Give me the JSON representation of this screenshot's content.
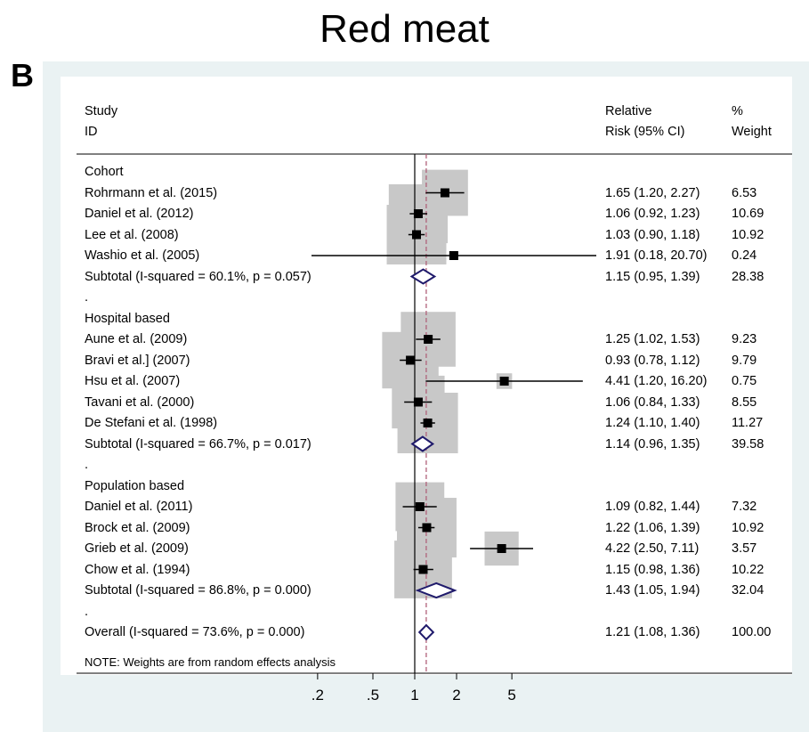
{
  "title": "Red meat",
  "panel_label": "B",
  "headers": {
    "study_line1": "Study",
    "study_line2": "ID",
    "rr_line1": "Relative",
    "rr_line2": "Risk (95% CI)",
    "weight_line1": "%",
    "weight_line2": "Weight"
  },
  "note": "NOTE: Weights are from random effects analysis",
  "colors": {
    "box": "#c8c8c8",
    "marker": "#000000",
    "diamond": "#1f1a6b",
    "overall_line": "#b0627a",
    "plot_background": "#eaf2f3"
  },
  "chart_data": {
    "type": "forest",
    "x_scale": "log",
    "x_ticks": [
      0.2,
      0.5,
      1,
      2,
      5
    ],
    "x_tick_labels": [
      ".2",
      ".5",
      "1",
      "2",
      "5"
    ],
    "null_line": 1,
    "overall_estimate": 1.21,
    "rows": [
      {
        "kind": "group",
        "label": "Cohort"
      },
      {
        "kind": "study",
        "label": "Rohrmann et al. (2015)",
        "rr": 1.65,
        "lo": 1.2,
        "hi": 2.27,
        "ci_text": "1.65 (1.20, 2.27)",
        "weight": "6.53"
      },
      {
        "kind": "study",
        "label": "Daniel et al. (2012)",
        "rr": 1.06,
        "lo": 0.92,
        "hi": 1.23,
        "ci_text": "1.06 (0.92, 1.23)",
        "weight": "10.69"
      },
      {
        "kind": "study",
        "label": "Lee et al. (2008)",
        "rr": 1.03,
        "lo": 0.9,
        "hi": 1.18,
        "ci_text": "1.03 (0.90, 1.18)",
        "weight": "10.92"
      },
      {
        "kind": "study",
        "label": "Washio et al. (2005)",
        "rr": 1.91,
        "lo": 0.18,
        "hi": 20.7,
        "ci_text": "1.91 (0.18, 20.70)",
        "weight": "0.24"
      },
      {
        "kind": "subtotal",
        "label": "Subtotal  (I-squared = 60.1%, p = 0.057)",
        "rr": 1.15,
        "lo": 0.95,
        "hi": 1.39,
        "ci_text": "1.15 (0.95, 1.39)",
        "weight": "28.38"
      },
      {
        "kind": "spacer",
        "label": "."
      },
      {
        "kind": "group",
        "label": "Hospital based"
      },
      {
        "kind": "study",
        "label": "Aune et al.  (2009)",
        "rr": 1.25,
        "lo": 1.02,
        "hi": 1.53,
        "ci_text": "1.25 (1.02, 1.53)",
        "weight": "9.23"
      },
      {
        "kind": "study",
        "label": "Bravi et al.] (2007)",
        "rr": 0.93,
        "lo": 0.78,
        "hi": 1.12,
        "ci_text": "0.93 (0.78, 1.12)",
        "weight": "9.79"
      },
      {
        "kind": "study",
        "label": "Hsu et al. (2007)",
        "rr": 4.41,
        "lo": 1.2,
        "hi": 16.2,
        "ci_text": "4.41 (1.20, 16.20)",
        "weight": "0.75"
      },
      {
        "kind": "study",
        "label": "Tavani et al. (2000)",
        "rr": 1.06,
        "lo": 0.84,
        "hi": 1.33,
        "ci_text": "1.06 (0.84, 1.33)",
        "weight": "8.55"
      },
      {
        "kind": "study",
        "label": "De Stefani et al. (1998)",
        "rr": 1.24,
        "lo": 1.1,
        "hi": 1.4,
        "ci_text": "1.24 (1.10, 1.40)",
        "weight": "11.27"
      },
      {
        "kind": "subtotal",
        "label": "Subtotal  (I-squared = 66.7%, p = 0.017)",
        "rr": 1.14,
        "lo": 0.96,
        "hi": 1.35,
        "ci_text": "1.14 (0.96, 1.35)",
        "weight": "39.58"
      },
      {
        "kind": "spacer",
        "label": "."
      },
      {
        "kind": "group",
        "label": "Population based"
      },
      {
        "kind": "study",
        "label": "Daniel et al. (2011)",
        "rr": 1.09,
        "lo": 0.82,
        "hi": 1.44,
        "ci_text": "1.09 (0.82, 1.44)",
        "weight": "7.32"
      },
      {
        "kind": "study",
        "label": "Brock et al. (2009)",
        "rr": 1.22,
        "lo": 1.06,
        "hi": 1.39,
        "ci_text": "1.22 (1.06, 1.39)",
        "weight": "10.92"
      },
      {
        "kind": "study",
        "label": "Grieb et al. (2009)",
        "rr": 4.22,
        "lo": 2.5,
        "hi": 7.11,
        "ci_text": "4.22 (2.50, 7.11)",
        "weight": "3.57"
      },
      {
        "kind": "study",
        "label": "Chow et al. (1994)",
        "rr": 1.15,
        "lo": 0.98,
        "hi": 1.36,
        "ci_text": "1.15 (0.98, 1.36)",
        "weight": "10.22"
      },
      {
        "kind": "subtotal",
        "label": "Subtotal  (I-squared = 86.8%, p = 0.000)",
        "rr": 1.43,
        "lo": 1.05,
        "hi": 1.94,
        "ci_text": "1.43 (1.05, 1.94)",
        "weight": "32.04"
      },
      {
        "kind": "spacer",
        "label": "."
      },
      {
        "kind": "overall",
        "label": "Overall  (I-squared = 73.6%, p = 0.000)",
        "rr": 1.21,
        "lo": 1.08,
        "hi": 1.36,
        "ci_text": "1.21 (1.08, 1.36)",
        "weight": "100.00"
      }
    ]
  }
}
